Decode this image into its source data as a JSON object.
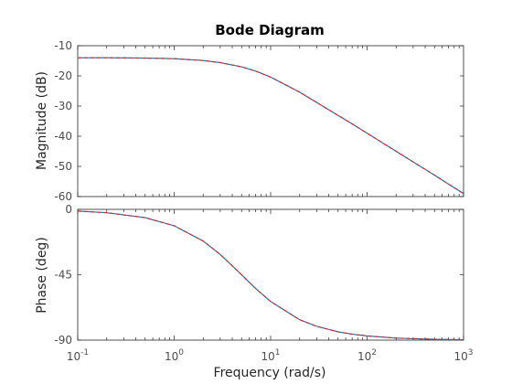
{
  "chart_data": {
    "type": "line",
    "title": "Bode Diagram",
    "xlabel": "Frequency  (rad/s)",
    "xscale": "log",
    "xlim": [
      0.1,
      1000
    ],
    "x_ticks": [
      {
        "value": 0.1,
        "base": "10",
        "exp": "-1"
      },
      {
        "value": 1,
        "base": "10",
        "exp": "0"
      },
      {
        "value": 10,
        "base": "10",
        "exp": "1"
      },
      {
        "value": 100,
        "base": "10",
        "exp": "2"
      },
      {
        "value": 1000,
        "base": "10",
        "exp": "3"
      }
    ],
    "grid": false,
    "panels": [
      {
        "name": "magnitude",
        "ylabel": "Magnitude (dB)",
        "ylim": [
          -60,
          -10
        ],
        "yticks": [
          -10,
          -20,
          -30,
          -40,
          -50,
          -60
        ],
        "series": [
          {
            "color": "#0072bd",
            "style": "solid",
            "x": [
              0.1,
              0.2,
              0.5,
              1,
              2,
              3,
              5,
              7,
              10,
              20,
              30,
              50,
              70,
              100,
              200,
              300,
              500,
              700,
              1000
            ],
            "y": [
              -14.0,
              -14.0,
              -14.1,
              -14.3,
              -14.9,
              -15.6,
              -17.0,
              -18.4,
              -20.4,
              -25.4,
              -28.8,
              -33.1,
              -35.9,
              -39.0,
              -45.0,
              -48.5,
              -52.9,
              -55.9,
              -59.0
            ]
          },
          {
            "color": "#d62728",
            "style": "dashed",
            "x": [
              0.1,
              0.2,
              0.5,
              1,
              2,
              3,
              5,
              7,
              10,
              20,
              30,
              50,
              70,
              100,
              200,
              300,
              500,
              700,
              1000
            ],
            "y": [
              -14.0,
              -14.0,
              -14.1,
              -14.3,
              -14.9,
              -15.6,
              -17.0,
              -18.4,
              -20.4,
              -25.4,
              -28.8,
              -33.1,
              -35.9,
              -39.0,
              -45.0,
              -48.5,
              -52.9,
              -55.9,
              -59.0
            ]
          }
        ]
      },
      {
        "name": "phase",
        "ylabel": "Phase (deg)",
        "ylim": [
          -90,
          0
        ],
        "yticks": [
          0,
          -45,
          -90
        ],
        "series": [
          {
            "color": "#0072bd",
            "style": "solid",
            "x": [
              0.1,
              0.2,
              0.5,
              1,
              2,
              3,
              5,
              7,
              10,
              20,
              30,
              50,
              70,
              100,
              200,
              300,
              500,
              700,
              1000
            ],
            "y": [
              -1.2,
              -2.3,
              -5.7,
              -11.3,
              -21.8,
              -31.0,
              -45.0,
              -54.5,
              -63.4,
              -76.0,
              -80.5,
              -84.3,
              -85.9,
              -87.1,
              -88.6,
              -89.0,
              -89.4,
              -89.6,
              -89.7
            ]
          },
          {
            "color": "#d62728",
            "style": "dashed",
            "x": [
              0.1,
              0.2,
              0.5,
              1,
              2,
              3,
              5,
              7,
              10,
              20,
              30,
              50,
              70,
              100,
              200,
              300,
              500,
              700,
              1000
            ],
            "y": [
              -1.2,
              -2.3,
              -5.7,
              -11.3,
              -21.8,
              -31.0,
              -45.0,
              -54.5,
              -63.4,
              -76.0,
              -80.5,
              -84.3,
              -85.9,
              -87.1,
              -88.6,
              -89.0,
              -89.4,
              -89.6,
              -89.7
            ]
          }
        ]
      }
    ]
  }
}
